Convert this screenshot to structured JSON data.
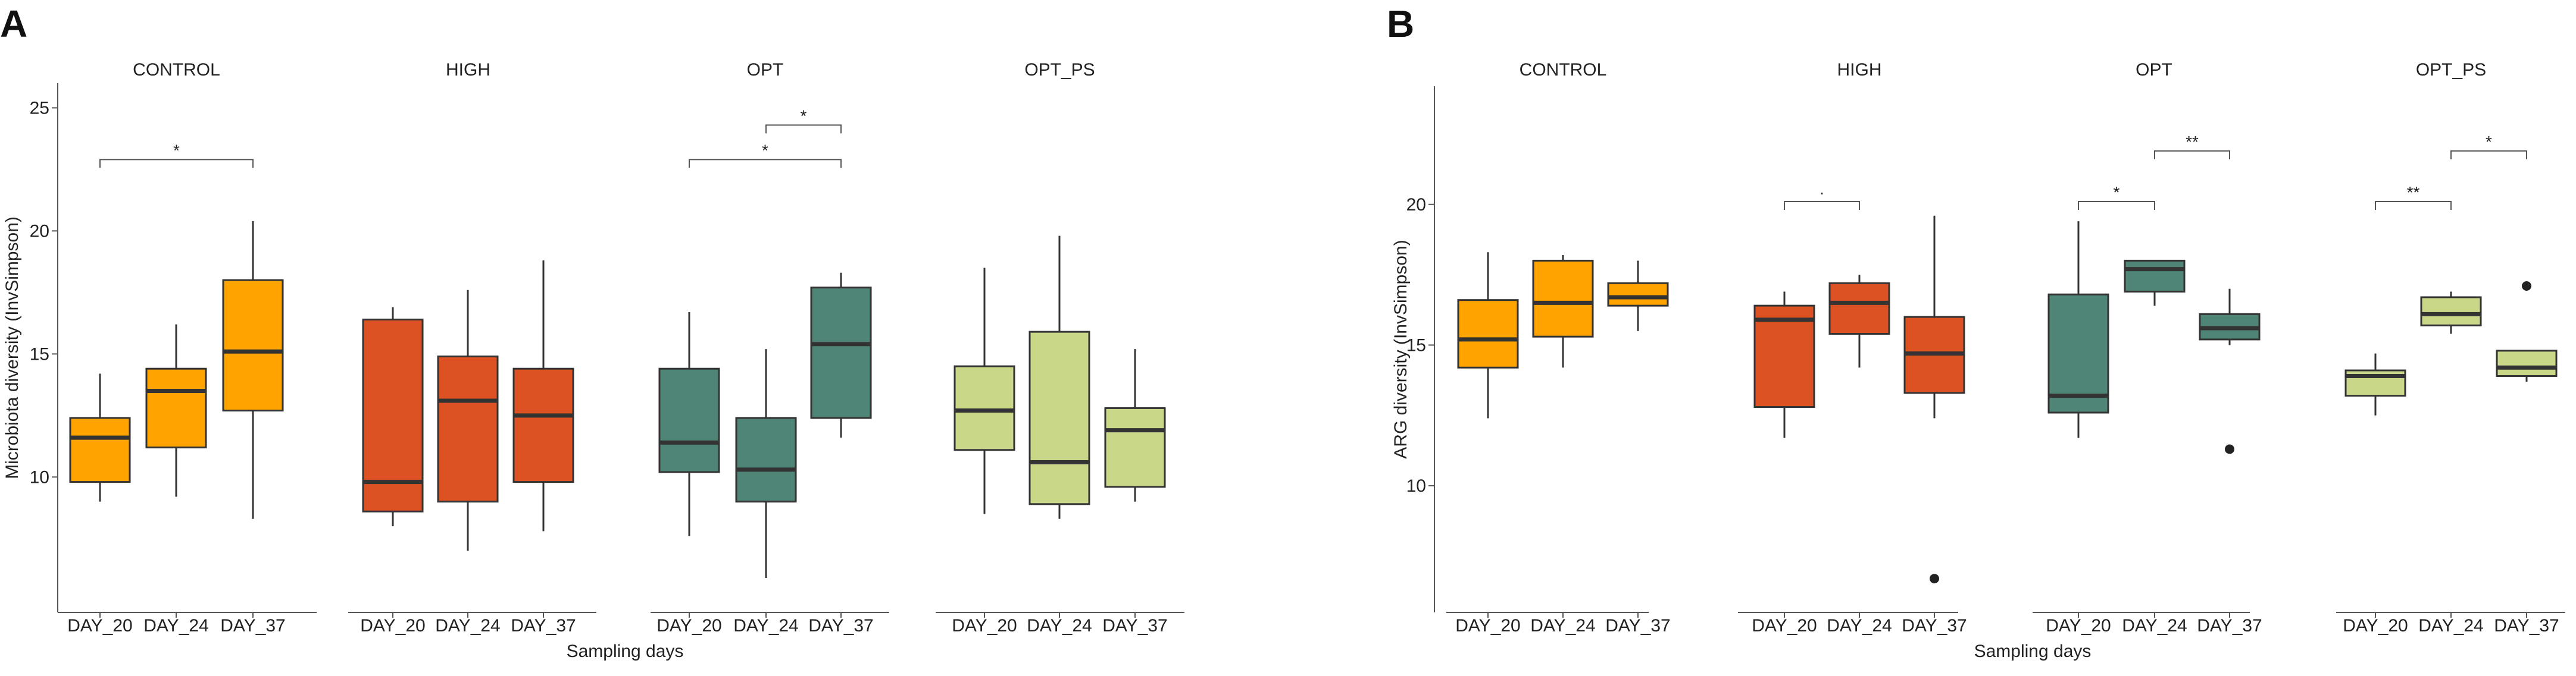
{
  "figure": {
    "panel_labels": [
      "A",
      "B"
    ]
  },
  "colors": {
    "CONTROL": "#FFA300",
    "HIGH": "#DC5223",
    "OPT": "#4E8576",
    "OPT_PS": "#C9D788",
    "line": "#333333",
    "axis": "#555555"
  },
  "chart_data": [
    {
      "type": "box",
      "panel": "A",
      "ylabel": "Microbiota diversity (InvSimpson)",
      "xlabel": "Sampling days",
      "ylim": [
        4.5,
        26
      ],
      "yticks": [
        10,
        15,
        20,
        25
      ],
      "facets": [
        {
          "name": "CONTROL",
          "categories": [
            "DAY_20",
            "DAY_24",
            "DAY_37"
          ],
          "boxes": [
            {
              "q1": 9.8,
              "median": 11.6,
              "q3": 12.4,
              "low": 9.0,
              "high": 14.2,
              "outliers": []
            },
            {
              "q1": 11.2,
              "median": 13.5,
              "q3": 14.4,
              "low": 9.2,
              "high": 16.2,
              "outliers": []
            },
            {
              "q1": 12.7,
              "median": 15.1,
              "q3": 18.0,
              "low": 8.3,
              "high": 20.4,
              "outliers": []
            }
          ],
          "significance": [
            {
              "from": 0,
              "to": 2,
              "y": 22.9,
              "label": "*"
            }
          ]
        },
        {
          "name": "HIGH",
          "categories": [
            "DAY_20",
            "DAY_24",
            "DAY_37"
          ],
          "boxes": [
            {
              "q1": 8.6,
              "median": 9.8,
              "q3": 16.4,
              "low": 8.0,
              "high": 16.9,
              "outliers": []
            },
            {
              "q1": 9.0,
              "median": 13.1,
              "q3": 14.9,
              "low": 7.0,
              "high": 17.6,
              "outliers": []
            },
            {
              "q1": 9.8,
              "median": 12.5,
              "q3": 14.4,
              "low": 7.8,
              "high": 18.8,
              "outliers": []
            }
          ],
          "significance": []
        },
        {
          "name": "OPT",
          "categories": [
            "DAY_20",
            "DAY_24",
            "DAY_37"
          ],
          "boxes": [
            {
              "q1": 10.2,
              "median": 11.4,
              "q3": 14.4,
              "low": 7.6,
              "high": 16.7,
              "outliers": []
            },
            {
              "q1": 9.0,
              "median": 10.3,
              "q3": 12.4,
              "low": 5.9,
              "high": 15.2,
              "outliers": []
            },
            {
              "q1": 12.4,
              "median": 15.4,
              "q3": 17.7,
              "low": 11.6,
              "high": 18.3,
              "outliers": []
            }
          ],
          "significance": [
            {
              "from": 1,
              "to": 2,
              "y": 24.3,
              "label": "*"
            },
            {
              "from": 0,
              "to": 2,
              "y": 22.9,
              "label": "*"
            }
          ]
        },
        {
          "name": "OPT_PS",
          "categories": [
            "DAY_20",
            "DAY_24",
            "DAY_37"
          ],
          "boxes": [
            {
              "q1": 11.1,
              "median": 12.7,
              "q3": 14.5,
              "low": 8.5,
              "high": 18.5,
              "outliers": []
            },
            {
              "q1": 8.9,
              "median": 10.6,
              "q3": 15.9,
              "low": 8.3,
              "high": 19.8,
              "outliers": []
            },
            {
              "q1": 9.6,
              "median": 11.9,
              "q3": 12.8,
              "low": 9.0,
              "high": 15.2,
              "outliers": []
            }
          ],
          "significance": []
        }
      ]
    },
    {
      "type": "box",
      "panel": "B",
      "ylabel": "ARG diversity (InvSimpson)",
      "xlabel": "Sampling days",
      "ylim": [
        5.5,
        24.2
      ],
      "yticks": [
        10,
        15,
        20
      ],
      "facets": [
        {
          "name": "CONTROL",
          "categories": [
            "DAY_20",
            "DAY_24",
            "DAY_37"
          ],
          "boxes": [
            {
              "q1": 14.2,
              "median": 15.2,
              "q3": 16.6,
              "low": 12.4,
              "high": 18.3,
              "outliers": []
            },
            {
              "q1": 15.3,
              "median": 16.5,
              "q3": 18.0,
              "low": 14.2,
              "high": 18.2,
              "outliers": []
            },
            {
              "q1": 16.4,
              "median": 16.7,
              "q3": 17.2,
              "low": 15.5,
              "high": 18.0,
              "outliers": []
            }
          ],
          "significance": []
        },
        {
          "name": "HIGH",
          "categories": [
            "DAY_20",
            "DAY_24",
            "DAY_37"
          ],
          "boxes": [
            {
              "q1": 12.8,
              "median": 15.9,
              "q3": 16.4,
              "low": 11.7,
              "high": 16.9,
              "outliers": []
            },
            {
              "q1": 15.4,
              "median": 16.5,
              "q3": 17.2,
              "low": 14.2,
              "high": 17.5,
              "outliers": []
            },
            {
              "q1": 13.3,
              "median": 14.7,
              "q3": 16.0,
              "low": 12.4,
              "high": 19.6,
              "outliers": [
                6.7
              ]
            }
          ],
          "significance": [
            {
              "from": 0,
              "to": 1,
              "y": 20.1,
              "label": "·"
            }
          ]
        },
        {
          "name": "OPT",
          "categories": [
            "DAY_20",
            "DAY_24",
            "DAY_37"
          ],
          "boxes": [
            {
              "q1": 12.6,
              "median": 13.2,
              "q3": 16.8,
              "low": 11.7,
              "high": 19.4,
              "outliers": []
            },
            {
              "q1": 16.9,
              "median": 17.7,
              "q3": 18.0,
              "low": 16.4,
              "high": 18.0,
              "outliers": []
            },
            {
              "q1": 15.2,
              "median": 15.6,
              "q3": 16.1,
              "low": 15.0,
              "high": 17.0,
              "outliers": [
                11.3
              ]
            }
          ],
          "significance": [
            {
              "from": 0,
              "to": 1,
              "y": 20.1,
              "label": "*"
            },
            {
              "from": 1,
              "to": 2,
              "y": 21.9,
              "label": "**"
            }
          ]
        },
        {
          "name": "OPT_PS",
          "categories": [
            "DAY_20",
            "DAY_24",
            "DAY_37"
          ],
          "boxes": [
            {
              "q1": 13.2,
              "median": 13.9,
              "q3": 14.1,
              "low": 12.5,
              "high": 14.7,
              "outliers": []
            },
            {
              "q1": 15.7,
              "median": 16.1,
              "q3": 16.7,
              "low": 15.4,
              "high": 16.9,
              "outliers": []
            },
            {
              "q1": 13.9,
              "median": 14.2,
              "q3": 14.8,
              "low": 13.7,
              "high": 14.8,
              "outliers": [
                17.1
              ]
            }
          ],
          "significance": [
            {
              "from": 0,
              "to": 1,
              "y": 20.1,
              "label": "**"
            },
            {
              "from": 1,
              "to": 2,
              "y": 21.9,
              "label": "*"
            }
          ]
        }
      ]
    }
  ]
}
